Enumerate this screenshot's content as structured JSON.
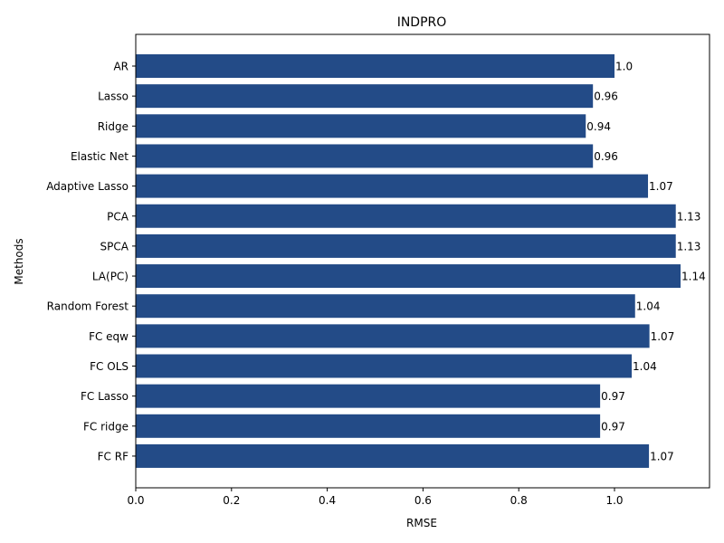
{
  "chart_data": {
    "type": "bar",
    "orientation": "horizontal",
    "title": "INDPRO",
    "xlabel": "RMSE",
    "ylabel": "Methods",
    "categories": [
      "AR",
      "Lasso",
      "Ridge",
      "Elastic Net",
      "Adaptive Lasso",
      "PCA",
      "SPCA",
      "LA(PC)",
      "Random Forest",
      "FC eqw",
      "FC OLS",
      "FC Lasso",
      "FC ridge",
      "FC RF"
    ],
    "values": [
      1.0,
      0.955,
      0.94,
      0.955,
      1.07,
      1.128,
      1.128,
      1.138,
      1.043,
      1.073,
      1.036,
      0.97,
      0.97,
      1.072
    ],
    "data_labels": [
      "1.0",
      "0.96",
      "0.94",
      "0.96",
      "1.07",
      "1.13",
      "1.13",
      "1.14",
      "1.04",
      "1.07",
      "1.04",
      "0.97",
      "0.97",
      "1.07"
    ],
    "xticks": [
      "0.0",
      "0.2",
      "0.4",
      "0.6",
      "0.8",
      "1.0"
    ],
    "xlim": [
      0,
      1.2
    ],
    "bar_color": "#234b87",
    "grid": false,
    "legend": false
  }
}
